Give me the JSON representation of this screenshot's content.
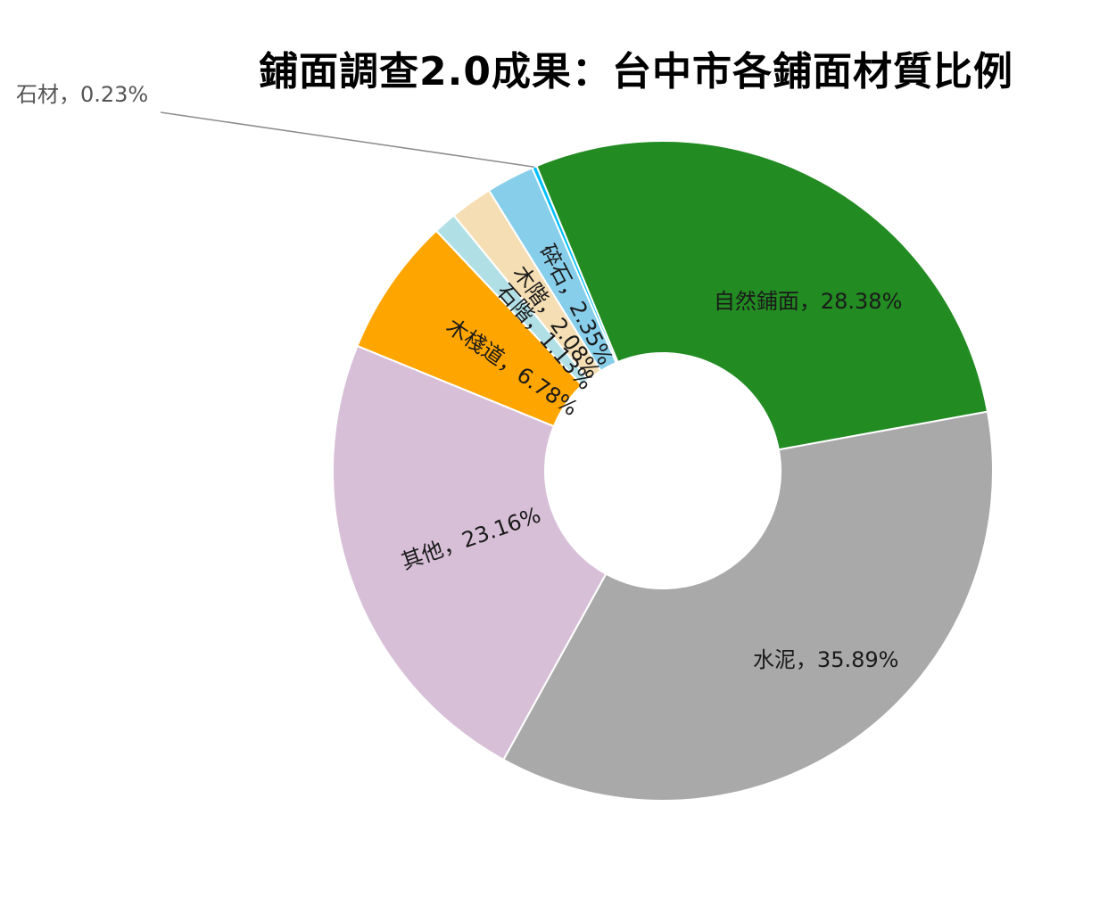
{
  "chart_data": {
    "type": "pie",
    "donut": true,
    "title": "鋪面調查2.0成果：台中市各鋪面材質比例",
    "separator": "，",
    "slices": [
      {
        "label": "自然鋪面",
        "value": 28.38,
        "display": "28.38%",
        "color": "#228B22"
      },
      {
        "label": "水泥",
        "value": 35.89,
        "display": "35.89%",
        "color": "#A9A9A9"
      },
      {
        "label": "其他",
        "value": 23.16,
        "display": "23.16%",
        "color": "#D8BFD8"
      },
      {
        "label": "木棧道",
        "value": 6.78,
        "display": "6.78%",
        "color": "#FFA500"
      },
      {
        "label": "石階",
        "value": 1.13,
        "display": "1.13%",
        "color": "#B0E0E6"
      },
      {
        "label": "木階",
        "value": 2.08,
        "display": "2.08%",
        "color": "#F5DEB3"
      },
      {
        "label": "碎石",
        "value": 2.35,
        "display": "2.35%",
        "color": "#87CEEB"
      },
      {
        "label": "石材",
        "value": 0.23,
        "display": "0.23%",
        "color": "#00BFFF"
      }
    ]
  }
}
